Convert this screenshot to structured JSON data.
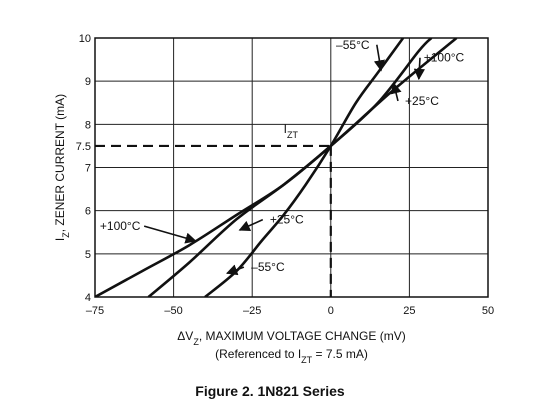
{
  "chart_data": {
    "type": "line",
    "title": "",
    "caption": "Figure 2. 1N821 Series",
    "xlabel": {
      "prefix": "ΔV",
      "sub": "Z",
      "suffix": ", MAXIMUM VOLTAGE CHANGE (mV)"
    },
    "xlabel2": {
      "prefix": "(Referenced to I",
      "sub": "ZT",
      "suffix": " = 7.5 mA)"
    },
    "ylabel": {
      "prefix": "I",
      "sub": "Z",
      "suffix": ", ZENER CURRENT (mA)"
    },
    "xlim": [
      -75,
      50
    ],
    "ylim": [
      4,
      10
    ],
    "xticks": [
      -75,
      -50,
      -25,
      0,
      25,
      50
    ],
    "xtick_labels": [
      "–75",
      "–50",
      "–25",
      "0",
      "25",
      "50"
    ],
    "yticks": [
      4,
      5,
      6,
      7,
      7.5,
      8,
      9,
      10
    ],
    "ytick_labels": [
      "4",
      "5",
      "6",
      "7",
      "7.5",
      "8",
      "9",
      "10"
    ],
    "grid": true,
    "reference": {
      "x": 0,
      "y": 7.5,
      "label_prefix": "I",
      "label_sub": "ZT"
    },
    "series": [
      {
        "name": "–55°C",
        "x": [
          -40,
          -30,
          -22,
          -15,
          -8,
          0,
          8,
          15,
          23
        ],
        "y": [
          4.0,
          4.6,
          5.3,
          5.9,
          6.6,
          7.5,
          8.5,
          9.2,
          10.0
        ]
      },
      {
        "name": "+25°C",
        "x": [
          -58,
          -45,
          -30,
          -15,
          0,
          15,
          28,
          32
        ],
        "y": [
          4.0,
          4.8,
          5.8,
          6.6,
          7.5,
          8.5,
          9.7,
          10.0
        ]
      },
      {
        "name": "+100°C",
        "x": [
          -75,
          -60,
          -45,
          -30,
          -15,
          0,
          20,
          40
        ],
        "y": [
          4.0,
          4.6,
          5.2,
          5.9,
          6.6,
          7.5,
          8.8,
          10.0
        ]
      }
    ],
    "annotations": [
      {
        "text": "–55°C",
        "x": 7,
        "y": 9.75,
        "ax": 16,
        "ay": 9.25
      },
      {
        "text": "+100°C",
        "x": 36,
        "y": 9.45,
        "ax": 28,
        "ay": 9.05
      },
      {
        "text": "+25°C",
        "x": 29,
        "y": 8.45,
        "ax": 20,
        "ay": 8.95
      },
      {
        "text": "+100°C",
        "x": -67,
        "y": 5.55,
        "ax": -43,
        "ay": 5.3
      },
      {
        "text": "+25°C",
        "x": -14,
        "y": 5.7,
        "ax": -29,
        "ay": 5.55
      },
      {
        "text": "–55°C",
        "x": -20,
        "y": 4.6,
        "ax": -33,
        "ay": 4.55
      }
    ]
  }
}
